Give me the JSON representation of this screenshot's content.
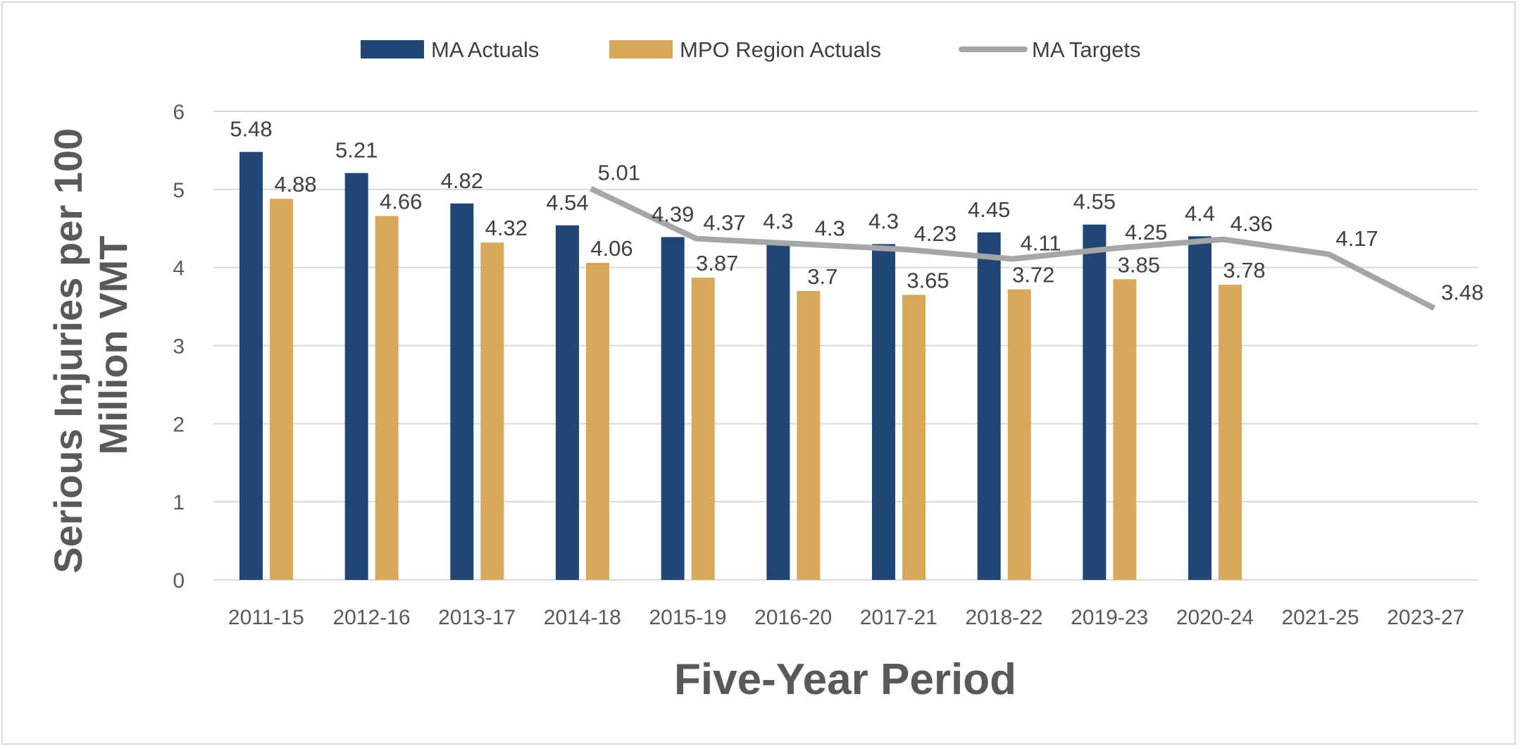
{
  "chart_data": {
    "type": "bar",
    "title": "",
    "xlabel": "Five-Year Period",
    "ylabel": "Serious Injuries per 100 Million VMT",
    "ylim": [
      0,
      6
    ],
    "yticks": [
      "0",
      "1",
      "2",
      "3",
      "4",
      "5",
      "6"
    ],
    "grid": true,
    "legend_position": "top",
    "categories": [
      "2011-15",
      "2012-16",
      "2013-17",
      "2014-18",
      "2015-19",
      "2016-20",
      "2017-21",
      "2018-22",
      "2019-23",
      "2020-24",
      "2021-25",
      "2023-27"
    ],
    "series": [
      {
        "name": "MA Actuals",
        "type": "bar",
        "color": "#1f4674",
        "values": [
          5.48,
          5.21,
          4.82,
          4.54,
          4.39,
          4.3,
          4.3,
          4.45,
          4.55,
          4.4,
          null,
          null
        ]
      },
      {
        "name": "MPO Region Actuals",
        "type": "bar",
        "color": "#d8a95d",
        "values": [
          4.88,
          4.66,
          4.32,
          4.06,
          3.87,
          3.7,
          3.65,
          3.72,
          3.85,
          3.78,
          null,
          null
        ]
      },
      {
        "name": "MA Targets",
        "type": "line",
        "color": "#a6a6a6",
        "values": [
          null,
          null,
          null,
          5.01,
          4.37,
          4.3,
          4.23,
          4.11,
          4.25,
          4.36,
          4.17,
          3.48
        ]
      }
    ]
  }
}
